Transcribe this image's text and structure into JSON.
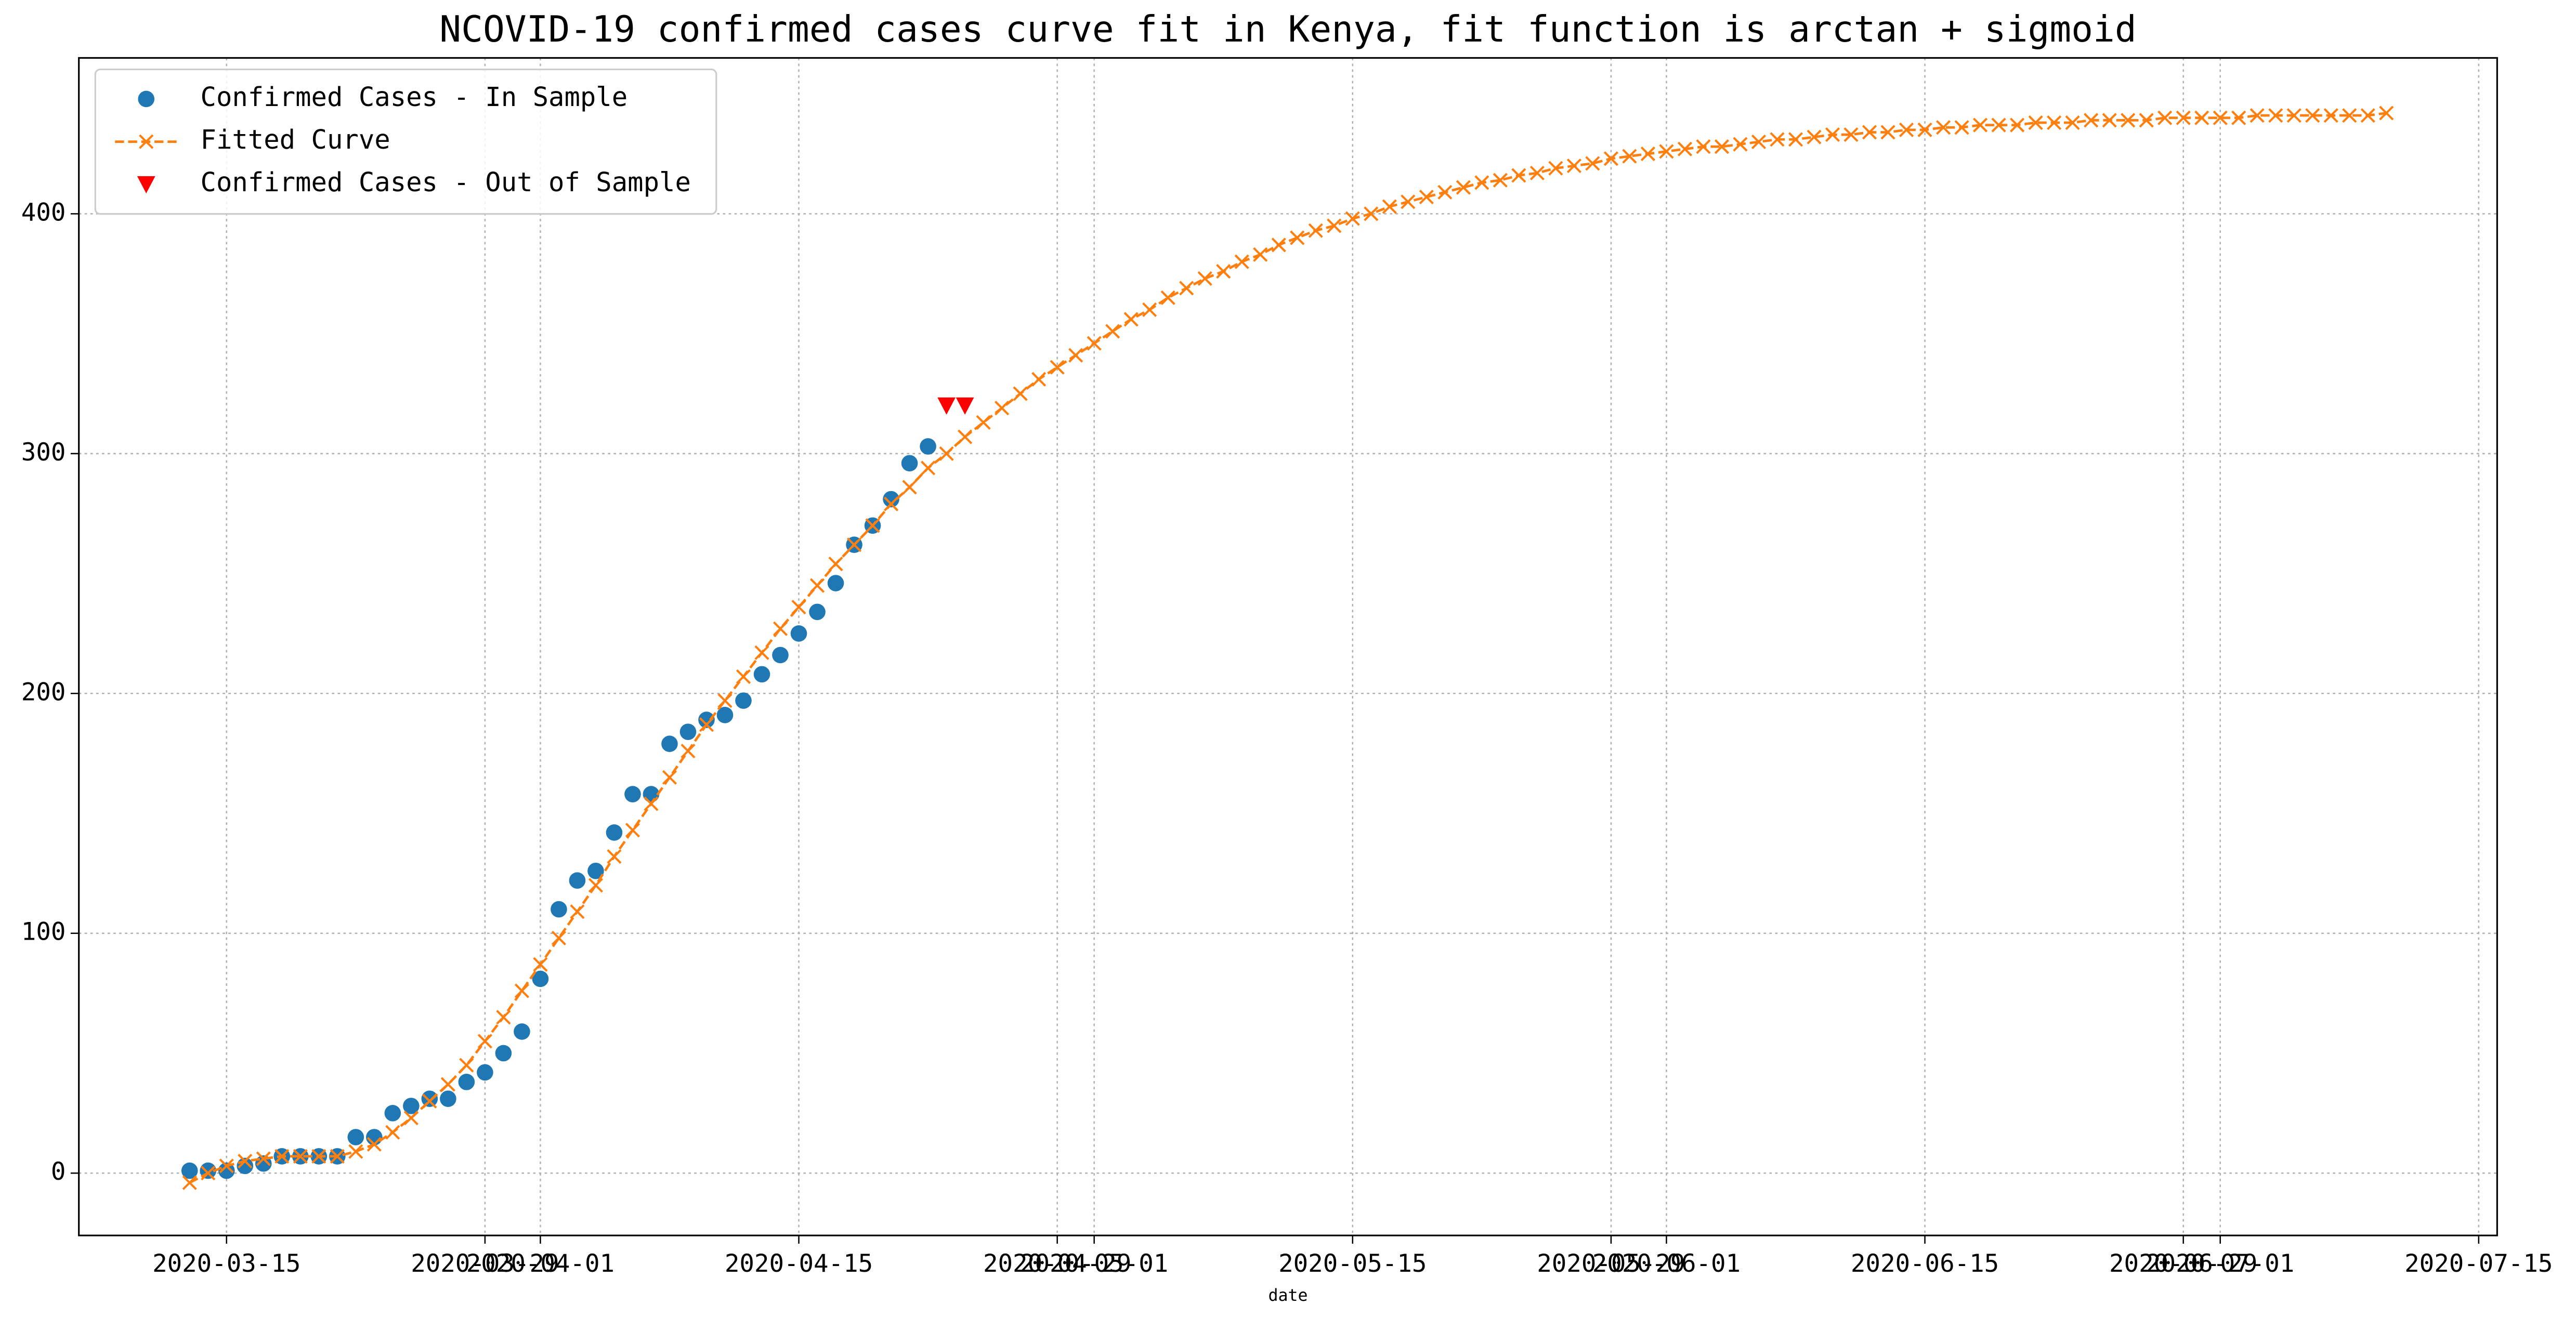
{
  "chart_data": {
    "type": "scatter_line",
    "title": "NCOVID-19 confirmed cases curve fit in Kenya, fit function is arctan + sigmoid",
    "x_label": "date",
    "xlim": [
      "2020-03-07",
      "2020-07-16"
    ],
    "ylim": [
      -26,
      465
    ],
    "xticks": [
      "2020-03-15",
      "2020-03-29",
      "2020-04-01",
      "2020-04-15",
      "2020-04-29",
      "2020-05-01",
      "2020-05-15",
      "2020-05-29",
      "2020-06-01",
      "2020-06-15",
      "2020-06-29",
      "2020-07-01",
      "2020-07-15"
    ],
    "yticks": [
      0,
      100,
      200,
      300,
      400
    ],
    "grid": true,
    "legend": "upper-left",
    "series": [
      {
        "name": "Confirmed Cases - In Sample",
        "color": "#1f77b4",
        "marker": "circle",
        "x": [
          "2020-03-13",
          "2020-03-14",
          "2020-03-15",
          "2020-03-16",
          "2020-03-17",
          "2020-03-18",
          "2020-03-19",
          "2020-03-20",
          "2020-03-21",
          "2020-03-22",
          "2020-03-23",
          "2020-03-24",
          "2020-03-25",
          "2020-03-26",
          "2020-03-27",
          "2020-03-28",
          "2020-03-29",
          "2020-03-30",
          "2020-03-31",
          "2020-04-01",
          "2020-04-02",
          "2020-04-03",
          "2020-04-04",
          "2020-04-05",
          "2020-04-06",
          "2020-04-07",
          "2020-04-08",
          "2020-04-09",
          "2020-04-10",
          "2020-04-11",
          "2020-04-12",
          "2020-04-13",
          "2020-04-14",
          "2020-04-15",
          "2020-04-16",
          "2020-04-17",
          "2020-04-18",
          "2020-04-19",
          "2020-04-20",
          "2020-04-21",
          "2020-04-22"
        ],
        "values": [
          1,
          1,
          1,
          3,
          4,
          7,
          7,
          7,
          7,
          15,
          15,
          25,
          28,
          31,
          31,
          38,
          42,
          50,
          59,
          81,
          110,
          122,
          126,
          142,
          158,
          158,
          179,
          184,
          189,
          191,
          197,
          208,
          216,
          225,
          234,
          246,
          262,
          270,
          281,
          296,
          303
        ]
      },
      {
        "name": "Fitted Curve",
        "color": "#ff7f0e",
        "marker": "x",
        "line": "dashed",
        "x": [
          "2020-03-13",
          "2020-03-14",
          "2020-03-15",
          "2020-03-16",
          "2020-03-17",
          "2020-03-18",
          "2020-03-19",
          "2020-03-20",
          "2020-03-21",
          "2020-03-22",
          "2020-03-23",
          "2020-03-24",
          "2020-03-25",
          "2020-03-26",
          "2020-03-27",
          "2020-03-28",
          "2020-03-29",
          "2020-03-30",
          "2020-03-31",
          "2020-04-01",
          "2020-04-02",
          "2020-04-03",
          "2020-04-04",
          "2020-04-05",
          "2020-04-06",
          "2020-04-07",
          "2020-04-08",
          "2020-04-09",
          "2020-04-10",
          "2020-04-11",
          "2020-04-12",
          "2020-04-13",
          "2020-04-14",
          "2020-04-15",
          "2020-04-16",
          "2020-04-17",
          "2020-04-18",
          "2020-04-19",
          "2020-04-20",
          "2020-04-21",
          "2020-04-22",
          "2020-04-23",
          "2020-04-24",
          "2020-04-25",
          "2020-04-26",
          "2020-04-27",
          "2020-04-28",
          "2020-04-29",
          "2020-04-30",
          "2020-05-01",
          "2020-05-02",
          "2020-05-03",
          "2020-05-04",
          "2020-05-05",
          "2020-05-06",
          "2020-05-07",
          "2020-05-08",
          "2020-05-09",
          "2020-05-10",
          "2020-05-11",
          "2020-05-12",
          "2020-05-13",
          "2020-05-14",
          "2020-05-15",
          "2020-05-16",
          "2020-05-17",
          "2020-05-18",
          "2020-05-19",
          "2020-05-20",
          "2020-05-21",
          "2020-05-22",
          "2020-05-23",
          "2020-05-24",
          "2020-05-25",
          "2020-05-26",
          "2020-05-27",
          "2020-05-28",
          "2020-05-29",
          "2020-05-30",
          "2020-05-31",
          "2020-06-01",
          "2020-06-02",
          "2020-06-03",
          "2020-06-04",
          "2020-06-05",
          "2020-06-06",
          "2020-06-07",
          "2020-06-08",
          "2020-06-09",
          "2020-06-10",
          "2020-06-11",
          "2020-06-12",
          "2020-06-13",
          "2020-06-14",
          "2020-06-15",
          "2020-06-16",
          "2020-06-17",
          "2020-06-18",
          "2020-06-19",
          "2020-06-20",
          "2020-06-21",
          "2020-06-22",
          "2020-06-23",
          "2020-06-24",
          "2020-06-25",
          "2020-06-26",
          "2020-06-27",
          "2020-06-28",
          "2020-06-29",
          "2020-06-30",
          "2020-07-01",
          "2020-07-02",
          "2020-07-03",
          "2020-07-04",
          "2020-07-05",
          "2020-07-06",
          "2020-07-07",
          "2020-07-08",
          "2020-07-09",
          "2020-07-10"
        ],
        "values": [
          -4,
          0,
          3,
          5,
          6,
          7,
          7,
          7,
          7,
          9,
          12,
          17,
          23,
          30,
          37,
          45,
          55,
          65,
          76,
          87,
          98,
          109,
          120,
          132,
          143,
          154,
          165,
          176,
          187,
          197,
          207,
          217,
          227,
          236,
          245,
          254,
          262,
          270,
          279,
          286,
          294,
          300,
          307,
          313,
          319,
          325,
          331,
          336,
          341,
          346,
          351,
          356,
          360,
          365,
          369,
          373,
          376,
          380,
          383,
          387,
          390,
          393,
          395,
          398,
          400,
          403,
          405,
          407,
          409,
          411,
          413,
          414,
          416,
          417,
          419,
          420,
          421,
          423,
          424,
          425,
          426,
          427,
          428,
          428,
          429,
          430,
          431,
          431,
          432,
          433,
          433,
          434,
          434,
          435,
          435,
          436,
          436,
          437,
          437,
          437,
          438,
          438,
          438,
          439,
          439,
          439,
          439,
          440,
          440,
          440,
          440,
          440,
          441,
          441,
          441,
          441,
          441,
          441,
          441,
          442
        ]
      },
      {
        "name": "Confirmed Cases - Out of Sample",
        "color": "#ff0000",
        "marker": "triangle",
        "x": [
          "2020-04-23",
          "2020-04-24"
        ],
        "values": [
          320,
          320
        ]
      }
    ]
  }
}
